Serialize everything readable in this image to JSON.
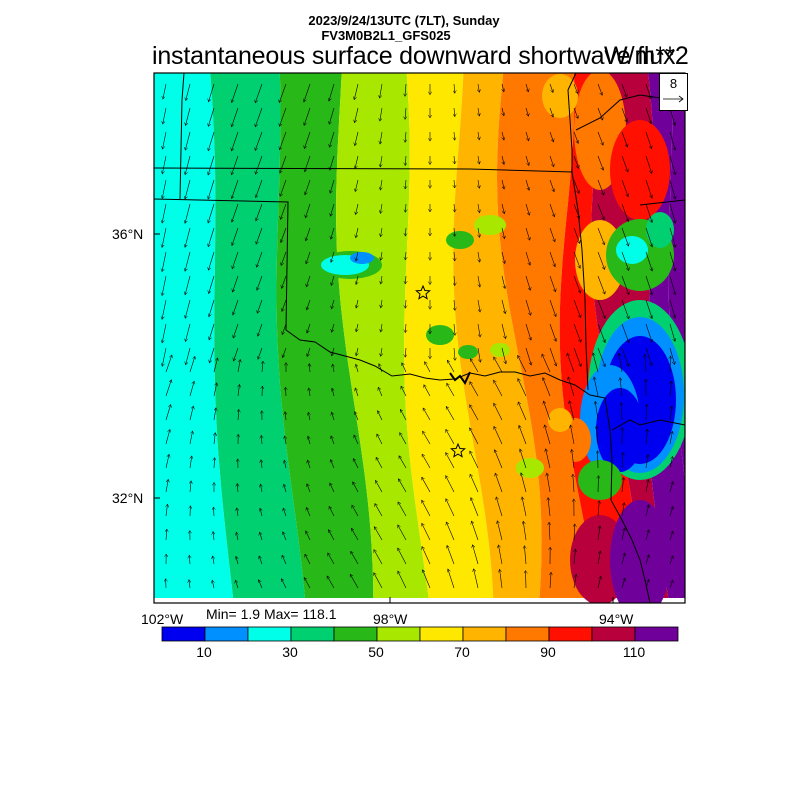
{
  "header": {
    "date_line": "2023/9/24/13UTC (7LT), Sunday",
    "run_line": "FV3M0B2L1_GFS025",
    "title": "instantaneous surface downward shortwave flux",
    "units": "W/m**2"
  },
  "reference_vector": {
    "value": "8"
  },
  "stats": {
    "text": "Min= 1.9 Max= 118.1"
  },
  "axes": {
    "lat_labels": [
      "36°N",
      "32°N"
    ],
    "lon_labels": [
      "102°W",
      "98°W",
      "94°W"
    ]
  },
  "colorbar": {
    "colors": [
      "#0000f0",
      "#0090ff",
      "#00ffe8",
      "#00d070",
      "#28b818",
      "#a8e800",
      "#ffe800",
      "#ffb400",
      "#ff7800",
      "#ff1000",
      "#b8003c",
      "#70009a"
    ],
    "labels": [
      "10",
      "30",
      "50",
      "70",
      "90",
      "110"
    ]
  },
  "markers": [
    {
      "name": "star-north"
    },
    {
      "name": "star-south"
    }
  ],
  "chart_data": {
    "type": "heatmap",
    "title": "instantaneous surface downward shortwave flux",
    "units": "W/m**2",
    "value_range": [
      1.9,
      118.1
    ],
    "contour_levels": [
      0,
      10,
      20,
      30,
      40,
      50,
      60,
      70,
      80,
      90,
      100,
      110,
      120
    ],
    "lon_range": [
      -102.2,
      -93.5
    ],
    "lat_range": [
      30.5,
      38.2
    ],
    "pattern": "west-to-east gradient: low values (20-40) in the west rising to 90-120 in the east; cloudy pocket of 0-20 near Louisiana border"
  }
}
